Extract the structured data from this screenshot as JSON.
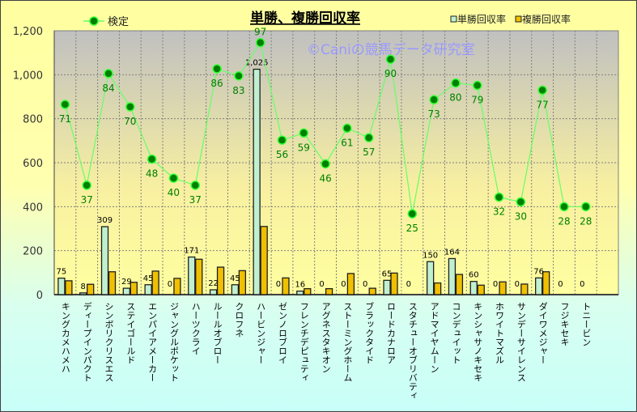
{
  "chart_data": {
    "type": "bar",
    "title": "単勝、複勝回収率",
    "watermark": "©Caniの競馬データ研究室",
    "ylim": [
      0,
      1200
    ],
    "yticks": [
      "0",
      "200",
      "400",
      "600",
      "800",
      "1,000",
      "1,200"
    ],
    "ytick_values": [
      0,
      200,
      400,
      600,
      800,
      1000,
      1200
    ],
    "grid": true,
    "legend_position": "top",
    "categories": [
      "キングカメハメハ",
      "ディープインパクト",
      "シンボリクリスエス",
      "ステイゴールド",
      "エンパイアメーカー",
      "ジャングルポケット",
      "ハーツクライ",
      "ルールオブロー",
      "クロフネ",
      "ハービンジャー",
      "ゼンノロブロイ",
      "フレンチデピュティ",
      "アグネスタキオン",
      "ストーミングホーム",
      "ブラックタイド",
      "ロードカナロア",
      "スタチューオブリバティ",
      "アドマイヤムーン",
      "コンデュイット",
      "キンシャサノキセキ",
      "ホワイトマズル",
      "サンデーサイレンス",
      "ダイワメジャー",
      "フジキセキ",
      "トニービン"
    ],
    "series": [
      {
        "name": "単勝回収率",
        "kind": "bar",
        "color": "#c0f0d0",
        "labels": [
          "75",
          "8",
          "309",
          "29",
          "45",
          "0",
          "171",
          "22",
          "45",
          "1,025",
          "0",
          "16",
          "0",
          "0",
          "0",
          "65",
          "0",
          "150",
          "164",
          "60",
          "0",
          "0",
          "76",
          "0",
          "0"
        ],
        "values": [
          75,
          8,
          309,
          29,
          45,
          0,
          171,
          22,
          45,
          1025,
          0,
          16,
          0,
          0,
          0,
          65,
          0,
          150,
          164,
          60,
          0,
          0,
          76,
          0,
          0
        ]
      },
      {
        "name": "複勝回収率",
        "kind": "bar",
        "color": "#f0c000",
        "values": [
          63,
          47,
          104,
          56,
          107,
          74,
          161,
          125,
          109,
          310,
          76,
          27,
          27,
          96,
          29,
          98,
          0,
          53,
          92,
          43,
          58,
          48,
          104,
          0,
          0
        ]
      },
      {
        "name": "検定",
        "kind": "line",
        "axis": "secondary",
        "secondary_range": [
          -9,
          102
        ],
        "color": "#008000",
        "values": [
          71,
          37,
          84,
          70,
          48,
          40,
          37,
          86,
          83,
          97,
          56,
          59,
          46,
          61,
          57,
          90,
          25,
          73,
          80,
          79,
          32,
          30,
          77,
          28,
          28
        ]
      }
    ]
  }
}
